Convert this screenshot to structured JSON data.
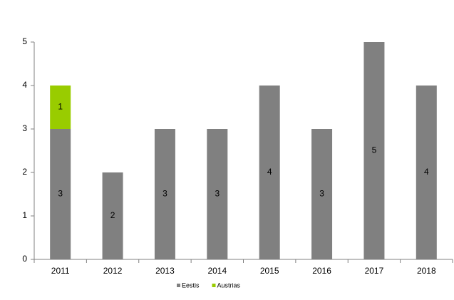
{
  "chart_data": {
    "type": "stacked_bar",
    "categories": [
      "2011",
      "2012",
      "2013",
      "2014",
      "2015",
      "2016",
      "2017",
      "2018"
    ],
    "series": [
      {
        "name": "Eestis",
        "color": "#808080",
        "values": [
          3,
          2,
          3,
          3,
          4,
          3,
          5,
          4
        ]
      },
      {
        "name": "Austrias",
        "color": "#99cc00",
        "values": [
          1,
          null,
          null,
          null,
          null,
          null,
          null,
          null
        ]
      }
    ],
    "ylim": [
      0,
      5
    ],
    "yticks": [
      0,
      1,
      2,
      3,
      4,
      5
    ],
    "grid": false,
    "legend": "bottom"
  }
}
